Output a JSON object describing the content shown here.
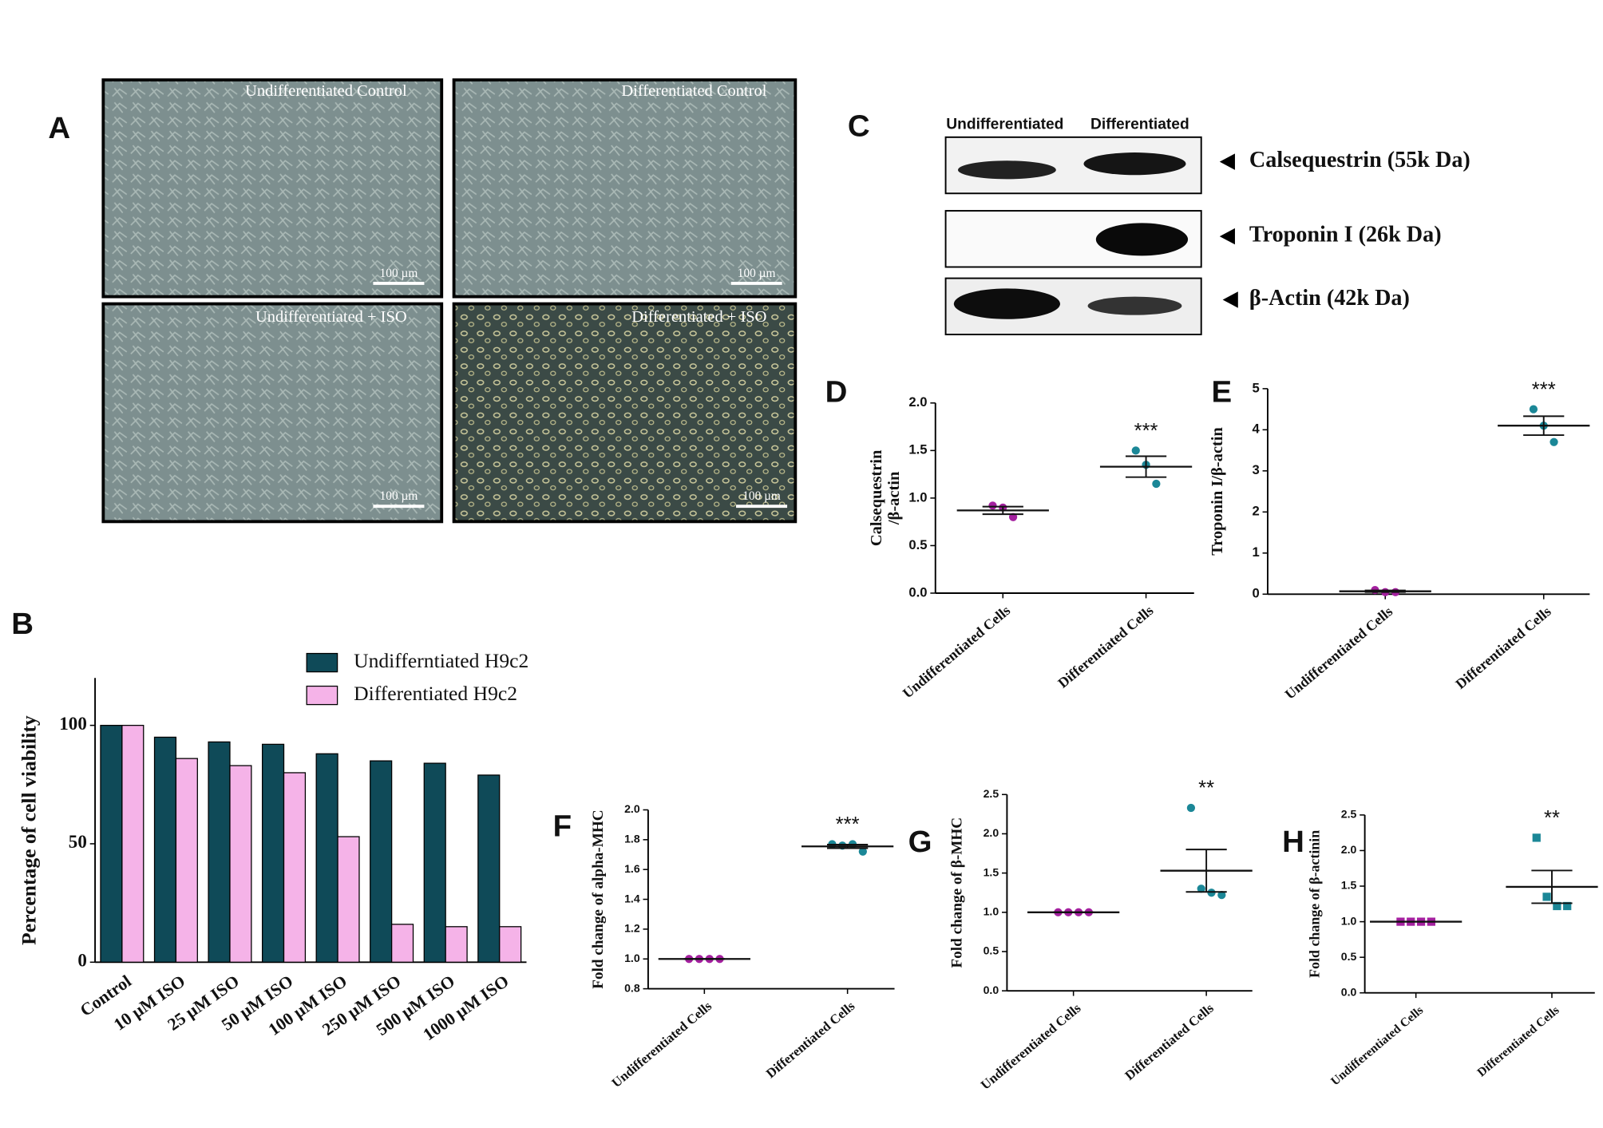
{
  "panels": {
    "A": {
      "label": "A",
      "images": [
        {
          "title": "Undifferentiated Control",
          "scale": "100 µm"
        },
        {
          "title": "Differentiated Control",
          "scale": "100 µm"
        },
        {
          "title": "Undifferentiated + ISO",
          "scale": "100 µm"
        },
        {
          "title": "Differentiated + ISO",
          "scale": "100 µm"
        }
      ]
    },
    "C": {
      "label": "C",
      "lanes": [
        "Undifferentiated",
        "Differentiated"
      ],
      "bands": [
        "Calsequestrin (55k Da)",
        "Troponin I (26k Da)",
        "β-Actin (42k Da)"
      ]
    }
  },
  "chart_data": [
    {
      "type": "bar",
      "label": "B",
      "ylabel": "Percentage of cell viability",
      "categories": [
        "Control",
        "10 µM ISO",
        "25 µM ISO",
        "50 µM ISO",
        "100 µM ISO",
        "250 µM ISO",
        "500 µM ISO",
        "1000 µM ISO"
      ],
      "series": [
        {
          "name": "Undifferntiated H9c2",
          "color": "#0f4a58",
          "values": [
            100,
            95,
            93,
            92,
            88,
            85,
            84,
            79
          ]
        },
        {
          "name": "Differentiated H9c2",
          "color": "#f5b3e8",
          "values": [
            100,
            86,
            83,
            80,
            53,
            16,
            15,
            15
          ]
        }
      ],
      "ylim": [
        0,
        120
      ],
      "yticks": [
        0,
        50,
        100
      ]
    },
    {
      "type": "dot",
      "label": "D",
      "ylabel": [
        "Calsequestrin",
        "/β-actin"
      ],
      "categories": [
        "Undifferentiated Cells",
        "Differentiated Cells"
      ],
      "colors": [
        "#a4209f",
        "#1b8797"
      ],
      "marker": "circle",
      "points": [
        [
          0.92,
          0.9,
          0.8
        ],
        [
          1.5,
          1.35,
          1.15
        ]
      ],
      "means": [
        0.87,
        1.33
      ],
      "errors": [
        0.04,
        0.11
      ],
      "annotation": "***",
      "ylim": [
        0,
        2
      ],
      "yticks": [
        {
          "value": 0,
          "label": "0.0"
        },
        0.5,
        {
          "value": 1,
          "label": "1.0"
        },
        1.5,
        {
          "value": 2,
          "label": "2.0"
        }
      ]
    },
    {
      "type": "dot",
      "label": "E",
      "ylabel": [
        "Troponin I/β-actin"
      ],
      "categories": [
        "Undifferentiated Cells",
        "Differentiated Cells"
      ],
      "colors": [
        "#a4209f",
        "#1b8797"
      ],
      "marker": "circle",
      "points": [
        [
          0.1,
          0.05,
          0.05
        ],
        [
          4.5,
          4.1,
          3.7
        ]
      ],
      "means": [
        0.07,
        4.1
      ],
      "errors": [
        0.02,
        0.23
      ],
      "annotation": "***",
      "ylim": [
        0,
        5
      ],
      "yticks": [
        0,
        1,
        2,
        3,
        4,
        5
      ]
    },
    {
      "type": "dot",
      "label": "F",
      "ylabel": [
        "Fold change of alpha-MHC"
      ],
      "categories": [
        "Undifferentiated Cells",
        "Differentiated Cells"
      ],
      "colors": [
        "#a4209f",
        "#1b8797"
      ],
      "marker": "circle",
      "points": [
        [
          1,
          1,
          1,
          1
        ],
        [
          1.77,
          1.76,
          1.77,
          1.72
        ]
      ],
      "means": [
        1,
        1.755
      ],
      "errors": [
        0,
        0.012
      ],
      "annotation": "***",
      "ylim": [
        0.8,
        2
      ],
      "yticks": [
        0.8,
        {
          "value": 1,
          "label": "1.0"
        },
        1.2,
        1.4,
        1.6,
        1.8,
        {
          "value": 2,
          "label": "2.0"
        }
      ]
    },
    {
      "type": "dot",
      "label": "G",
      "ylabel": [
        "Fold change of β-MHC"
      ],
      "categories": [
        "Undifferentiated Cells",
        "Differentiated Cells"
      ],
      "colors": [
        "#a4209f",
        "#1b8797"
      ],
      "marker": "circle",
      "points": [
        [
          1,
          1,
          1,
          1
        ],
        [
          2.33,
          1.3,
          1.25,
          1.22
        ]
      ],
      "means": [
        1,
        1.53
      ],
      "errors": [
        0,
        0.27
      ],
      "annotation": "**",
      "ylim": [
        0,
        2.5
      ],
      "yticks": [
        {
          "value": 0,
          "label": "0.0"
        },
        0.5,
        {
          "value": 1,
          "label": "1.0"
        },
        1.5,
        {
          "value": 2,
          "label": "2.0"
        },
        2.5
      ]
    },
    {
      "type": "dot",
      "label": "H",
      "ylabel": [
        "Fold change of β-actinin"
      ],
      "categories": [
        "Undifferentiated Cells",
        "Differentiated Cells"
      ],
      "colors": [
        "#a4209f",
        "#1b8797"
      ],
      "marker": "square",
      "points": [
        [
          1,
          1,
          1,
          1
        ],
        [
          2.18,
          1.35,
          1.22,
          1.22
        ]
      ],
      "means": [
        1,
        1.49
      ],
      "errors": [
        0,
        0.23
      ],
      "annotation": "**",
      "ylim": [
        0,
        2.5
      ],
      "yticks": [
        {
          "value": 0,
          "label": "0.0"
        },
        0.5,
        {
          "value": 1,
          "label": "1.0"
        },
        1.5,
        {
          "value": 2,
          "label": "2.0"
        },
        2.5
      ]
    }
  ]
}
